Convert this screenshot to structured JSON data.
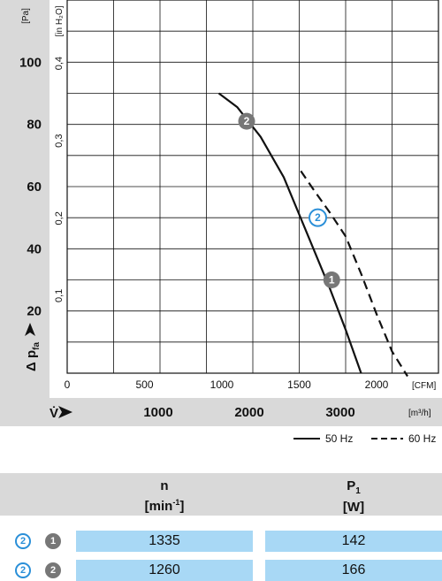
{
  "chart_data": {
    "type": "line",
    "ylabel_primary_unit": "[Pa]",
    "ylabel_secondary_unit": "[in H₂O]",
    "ylabel": "Δ p",
    "ylabel_sub": "fa",
    "xlabel": "V̇",
    "x_unit_cfm": "[CFM]",
    "x_unit_m3h": "[m³/h]",
    "y_ticks_pa": [
      "20",
      "40",
      "60",
      "80",
      "100"
    ],
    "y_ticks_inh2o": [
      "0,1",
      "0,2",
      "0,3",
      "0,4"
    ],
    "x_ticks_cfm": [
      "0",
      "500",
      "1000",
      "1500",
      "2000"
    ],
    "x_ticks_m3h": [
      "1000",
      "2000",
      "3000"
    ],
    "xlim_cfm": [
      0,
      2400
    ],
    "ylim_pa": [
      0,
      120
    ],
    "series": [
      {
        "name": "50 Hz",
        "style": "solid",
        "x": [
          980,
          1100,
          1250,
          1400,
          1550,
          1700,
          1800,
          1900
        ],
        "y": [
          90,
          85.5,
          76,
          63,
          45,
          27,
          14,
          0
        ]
      },
      {
        "name": "60 Hz",
        "style": "dashed",
        "x": [
          1510,
          1600,
          1700,
          1800,
          1900,
          2000,
          2100,
          2200
        ],
        "y": [
          65,
          58.5,
          51.5,
          44,
          32,
          19,
          7,
          -1
        ]
      }
    ],
    "markers": [
      {
        "label": "2",
        "style": "grey",
        "x": 1160,
        "y": 81
      },
      {
        "label": "2",
        "style": "blue",
        "x": 1620,
        "y": 50
      },
      {
        "label": "1",
        "style": "grey",
        "x": 1710,
        "y": 30
      }
    ]
  },
  "legend": {
    "solid_label": "50 Hz",
    "dashed_label": "60 Hz"
  },
  "table": {
    "headers": [
      {
        "line1": "n",
        "line2_main": "[min",
        "line2_sup": "-1",
        "line2_end": "]"
      },
      {
        "line1_main": "P",
        "line1_sub": "1",
        "line2": "[W]"
      }
    ],
    "rows": [
      {
        "badge_blue": "2",
        "badge_grey": "1",
        "n": "1335",
        "p1": "142"
      },
      {
        "badge_blue": "2",
        "badge_grey": "2",
        "n": "1260",
        "p1": "166"
      }
    ]
  },
  "colors": {
    "panel_grey": "#d9d9d9",
    "row_blue": "#a8d8f5",
    "marker_grey": "#777777",
    "marker_blue": "#2a8fd8"
  }
}
